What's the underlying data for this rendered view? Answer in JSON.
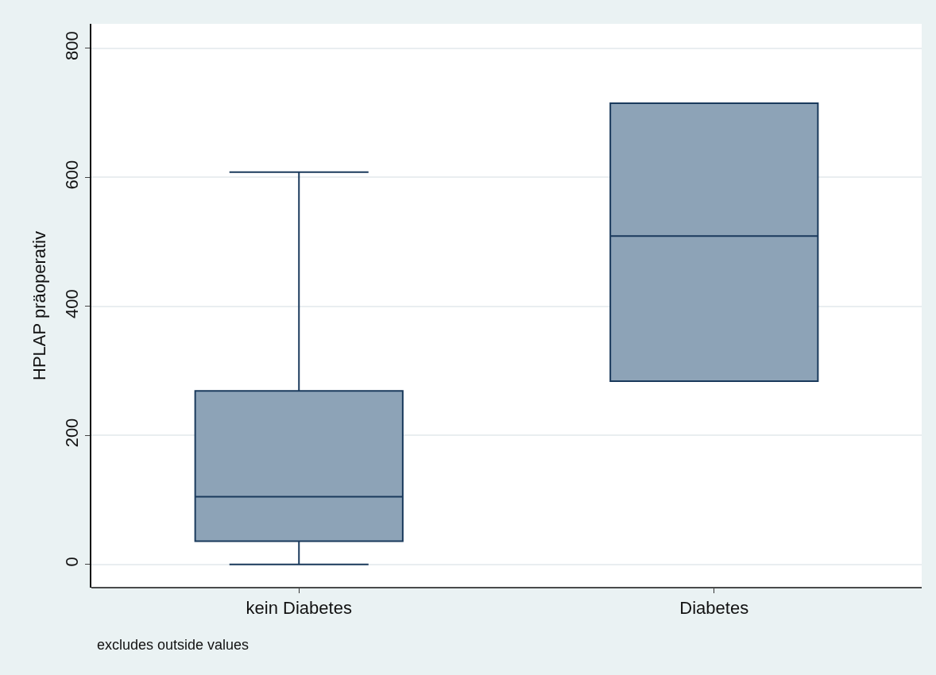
{
  "chart_data": {
    "type": "box",
    "ylabel": "HPLAP präoperativ",
    "categories": [
      "kein Diabetes",
      "Diabetes"
    ],
    "boxes": [
      {
        "low": 0,
        "q1": 36,
        "median": 105,
        "q3": 269,
        "high": 608
      },
      {
        "low": 284,
        "q1": 284,
        "median": 509,
        "q3": 715,
        "high": 715
      }
    ],
    "color": "#8da3b7",
    "ylim": [
      -36,
      838
    ],
    "yticks": [
      0,
      200,
      400,
      600,
      800
    ],
    "grid": "y",
    "legend": false,
    "annotations": [
      "excludes outside values"
    ]
  }
}
